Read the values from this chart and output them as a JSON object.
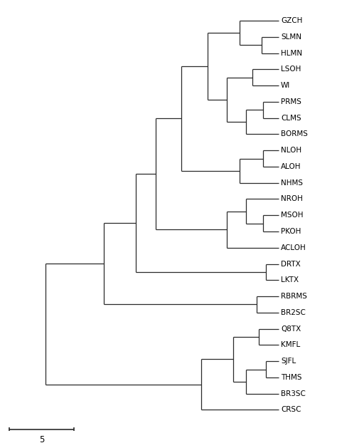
{
  "taxa": [
    "GZCH",
    "SLMN",
    "HLMN",
    "LSOH",
    "WI",
    "PRMS",
    "CLMS",
    "BORMS",
    "NLOH",
    "ALOH",
    "NHMS",
    "NROH",
    "MSOH",
    "PKOH",
    "ACLOH",
    "DRTX",
    "LKTX",
    "RBRMS",
    "BR2SC",
    "Q8TX",
    "KMFL",
    "SJFL",
    "THMS",
    "BR3SC",
    "CRSC"
  ],
  "scale_bar_value": 5,
  "background_color": "#ffffff",
  "line_color": "#2a2a2a",
  "line_width": 0.9,
  "label_fontsize": 7.5,
  "scale_fontsize": 8.5,
  "tree": {
    "n_slmn_hlmn": [
      "SLMN",
      "HLMN",
      19.2
    ],
    "n_gzch_s": [
      "GZCH",
      "n_slmn_hlmn",
      17.5
    ],
    "n_lsoh_wi": [
      "LSOH",
      "WI",
      18.5
    ],
    "n_prms_clms": [
      "PRMS",
      "CLMS",
      19.3
    ],
    "n_pcb": [
      "n_prms_clms",
      "BORMS",
      18.0
    ],
    "n_lwpcb": [
      "n_lsoh_wi",
      "n_pcb",
      16.5
    ],
    "n_top_group": [
      "n_gzch_s",
      "n_lwpcb",
      15.0
    ],
    "n_nloh_aloh": [
      "NLOH",
      "ALOH",
      19.3
    ],
    "n_nla_nhms": [
      "n_nloh_aloh",
      "NHMS",
      17.5
    ],
    "n_upper": [
      "n_top_group",
      "n_nla_nhms",
      13.0
    ],
    "n_msoh_pkoh": [
      "MSOH",
      "PKOH",
      19.3
    ],
    "n_nroh_mp": [
      "NROH",
      "n_msoh_pkoh",
      18.0
    ],
    "n_nroh_mp_a": [
      "n_nroh_mp",
      "ACLOH",
      16.5
    ],
    "n_drtx_lktx": [
      "DRTX",
      "LKTX",
      19.5
    ],
    "n_mid": [
      "n_upper",
      "n_nroh_mp_a",
      11.0
    ],
    "n_mid2": [
      "n_mid",
      "n_drtx_lktx",
      9.5
    ],
    "n_rb_br2": [
      "RBRMS",
      "BR2SC",
      18.8
    ],
    "n_upper_all": [
      "n_mid2",
      "n_rb_br2",
      7.0
    ],
    "n_q8_kmfl": [
      "Q8TX",
      "KMFL",
      19.0
    ],
    "n_sjfl_thms": [
      "SJFL",
      "THMS",
      19.5
    ],
    "n_sjt_br3": [
      "n_sjfl_thms",
      "BR3SC",
      18.0
    ],
    "n_q8_sjt": [
      "n_q8_kmfl",
      "n_sjt_br3",
      17.0
    ],
    "n_lower_all": [
      "n_q8_sjt",
      "CRSC",
      14.5
    ],
    "root": [
      "n_upper_all",
      "n_lower_all",
      2.5
    ]
  },
  "max_x": 20.5,
  "xlim": [
    -0.5,
    24.5
  ],
  "ylim": [
    -1.8,
    25.0
  ],
  "sb_x0": -0.3,
  "sb_x1": 4.7,
  "sb_y": -1.2,
  "sb_tick": 0.12
}
